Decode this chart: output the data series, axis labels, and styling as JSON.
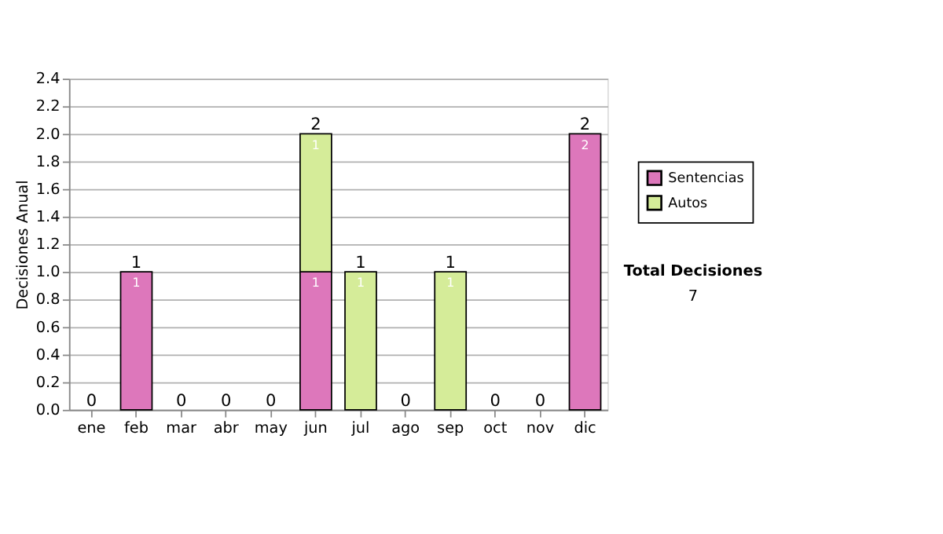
{
  "chart_data": {
    "type": "bar",
    "stacked": true,
    "ylabel": "Decisiones Anual",
    "categories": [
      "ene",
      "feb",
      "mar",
      "abr",
      "may",
      "jun",
      "jul",
      "ago",
      "sep",
      "oct",
      "nov",
      "dic"
    ],
    "series": [
      {
        "name": "Sentencias",
        "color": "#dd77bb",
        "values": [
          0,
          1,
          0,
          0,
          0,
          1,
          0,
          0,
          0,
          0,
          0,
          2
        ],
        "value_labels": [
          null,
          "1",
          null,
          null,
          null,
          "1",
          null,
          null,
          null,
          null,
          null,
          "2"
        ]
      },
      {
        "name": "Autos",
        "color": "#d5ec99",
        "values": [
          0,
          0,
          0,
          0,
          0,
          1,
          1,
          0,
          1,
          0,
          0,
          0
        ],
        "value_labels": [
          null,
          null,
          null,
          null,
          null,
          "1",
          "1",
          null,
          "1",
          null,
          null,
          null
        ]
      }
    ],
    "totals": [
      "0",
      "1",
      "0",
      "0",
      "0",
      "2",
      "1",
      "0",
      "1",
      "0",
      "0",
      "2"
    ],
    "ylim": [
      0,
      2.4
    ],
    "yticks": [
      {
        "value": 0,
        "label": "0.0"
      },
      0.2,
      0.4,
      0.6,
      0.8,
      {
        "value": 1,
        "label": "1.0"
      },
      1.2,
      1.4,
      1.6,
      1.8,
      {
        "value": 2,
        "label": "2.0"
      },
      2.2,
      2.4
    ],
    "grid": "y",
    "legend": "right",
    "annotations": [
      "Total Decisiones",
      "7"
    ]
  }
}
